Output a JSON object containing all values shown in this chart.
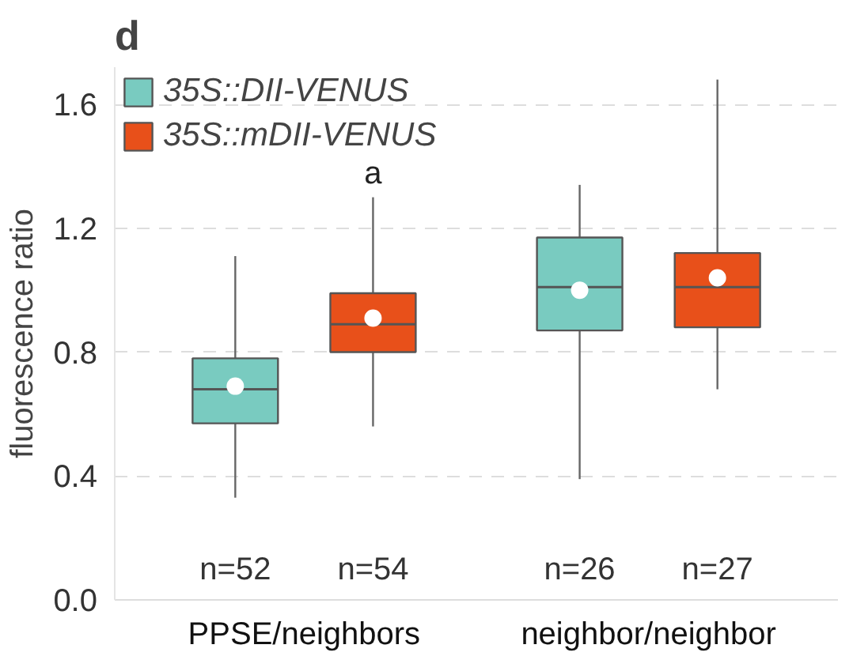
{
  "chart_data": {
    "type": "box",
    "title": "d",
    "ylabel": "fluorescence ratio",
    "categories": [
      "PPSE/neighbors",
      "neighbor/neighbor"
    ],
    "series": [
      {
        "name": "35S::DII-VENUS",
        "color": "#79cbc0",
        "boxes": [
          {
            "low": 0.33,
            "q1": 0.57,
            "median": 0.68,
            "q3": 0.78,
            "high": 1.11,
            "mean": 0.69
          },
          {
            "low": 0.39,
            "q1": 0.87,
            "median": 1.01,
            "q3": 1.17,
            "high": 1.34,
            "mean": 1.0
          }
        ]
      },
      {
        "name": "35S::mDII-VENUS",
        "color": "#e8501a",
        "boxes": [
          {
            "low": 0.56,
            "q1": 0.8,
            "median": 0.89,
            "q3": 0.99,
            "high": 1.3,
            "mean": 0.91
          },
          {
            "low": 0.68,
            "q1": 0.88,
            "median": 1.01,
            "q3": 1.12,
            "high": 1.68,
            "mean": 1.04
          }
        ]
      }
    ],
    "annotations": [
      "n=52",
      "n=54",
      "n=26",
      "n=27",
      "a"
    ],
    "ylim": [
      0,
      1.72
    ],
    "yticks": [
      {
        "value": 0,
        "label": "0.0"
      },
      0.4,
      0.8,
      1.2,
      1.6
    ],
    "grid": "y",
    "legend": "top left"
  }
}
